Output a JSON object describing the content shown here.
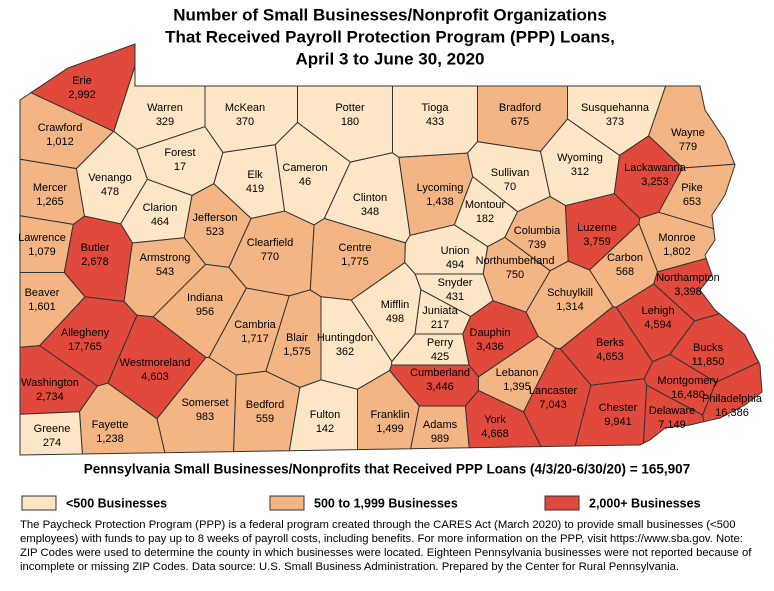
{
  "title": [
    "Number of Small Businesses/Nonprofit Organizations",
    "That Received Payroll Protection Program (PPP) Loans,",
    "April 3 to June 30, 2020"
  ],
  "total": "Pennsylvania Small Businesses/Nonprofits that Received PPP Loans (4/3/20-6/30/20) = 165,907",
  "legend": [
    {
      "label": "<500 Businesses",
      "color": "#fde6c6"
    },
    {
      "label": "500 to 1,999 Businesses",
      "color": "#f4b584"
    },
    {
      "label": "2,000+ Businesses",
      "color": "#e0493b"
    }
  ],
  "note": "The Paycheck Protection Program (PPP) is a federal program created through the CARES Act (March 2020) to provide small businesses (<500 employees) with funds to pay up to 8 weeks of payroll costs, including benefits. For more information on the PPP, visit https://www.sba.gov. Note: ZIP Codes were used to determine the county in which businesses were located. Eighteen Pennsylvania businesses were not reported because of incomplete or missing ZIP Codes. Data source: U.S. Small Business Administration. Prepared by the Center for Rural Pennsylvania.",
  "counties": [
    {
      "name": "Erie",
      "value": "2,992",
      "color": "#e0493b"
    },
    {
      "name": "Crawford",
      "value": "1,012",
      "color": "#f4b584"
    },
    {
      "name": "Warren",
      "value": "329",
      "color": "#fde6c6"
    },
    {
      "name": "McKean",
      "value": "370",
      "color": "#fde6c6"
    },
    {
      "name": "Potter",
      "value": "180",
      "color": "#fde6c6"
    },
    {
      "name": "Tioga",
      "value": "433",
      "color": "#fde6c6"
    },
    {
      "name": "Bradford",
      "value": "675",
      "color": "#f4b584"
    },
    {
      "name": "Susquehanna",
      "value": "373",
      "color": "#fde6c6"
    },
    {
      "name": "Wayne",
      "value": "779",
      "color": "#f4b584"
    },
    {
      "name": "Forest",
      "value": "17",
      "color": "#fde6c6"
    },
    {
      "name": "Venango",
      "value": "478",
      "color": "#fde6c6"
    },
    {
      "name": "Mercer",
      "value": "1,265",
      "color": "#f4b584"
    },
    {
      "name": "Elk",
      "value": "419",
      "color": "#fde6c6"
    },
    {
      "name": "Cameron",
      "value": "46",
      "color": "#fde6c6"
    },
    {
      "name": "Clinton",
      "value": "348",
      "color": "#fde6c6"
    },
    {
      "name": "Lycoming",
      "value": "1,438",
      "color": "#f4b584"
    },
    {
      "name": "Sullivan",
      "value": "70",
      "color": "#fde6c6"
    },
    {
      "name": "Wyoming",
      "value": "312",
      "color": "#fde6c6"
    },
    {
      "name": "Lackawanna",
      "value": "3,253",
      "color": "#e0493b"
    },
    {
      "name": "Pike",
      "value": "653",
      "color": "#f4b584"
    },
    {
      "name": "Lawrence",
      "value": "1,079",
      "color": "#f4b584"
    },
    {
      "name": "Clarion",
      "value": "464",
      "color": "#fde6c6"
    },
    {
      "name": "Jefferson",
      "value": "523",
      "color": "#f4b584"
    },
    {
      "name": "Clearfield",
      "value": "770",
      "color": "#f4b584"
    },
    {
      "name": "Centre",
      "value": "1,775",
      "color": "#f4b584"
    },
    {
      "name": "Union",
      "value": "494",
      "color": "#fde6c6"
    },
    {
      "name": "Montour",
      "value": "182",
      "color": "#fde6c6"
    },
    {
      "name": "Columbia",
      "value": "739",
      "color": "#f4b584"
    },
    {
      "name": "Luzerne",
      "value": "3,759",
      "color": "#e0493b"
    },
    {
      "name": "Monroe",
      "value": "1,802",
      "color": "#f4b584"
    },
    {
      "name": "Butler",
      "value": "2,678",
      "color": "#e0493b"
    },
    {
      "name": "Armstrong",
      "value": "543",
      "color": "#f4b584"
    },
    {
      "name": "Northumberland",
      "value": "750",
      "color": "#f4b584"
    },
    {
      "name": "Snyder",
      "value": "431",
      "color": "#fde6c6"
    },
    {
      "name": "Carbon",
      "value": "568",
      "color": "#f4b584"
    },
    {
      "name": "Northampton",
      "value": "3,398",
      "color": "#e0493b"
    },
    {
      "name": "Beaver",
      "value": "1,601",
      "color": "#f4b584"
    },
    {
      "name": "Indiana",
      "value": "956",
      "color": "#f4b584"
    },
    {
      "name": "Mifflin",
      "value": "498",
      "color": "#fde6c6"
    },
    {
      "name": "Juniata",
      "value": "217",
      "color": "#fde6c6"
    },
    {
      "name": "Schuylkill",
      "value": "1,314",
      "color": "#f4b584"
    },
    {
      "name": "Lehigh",
      "value": "4,594",
      "color": "#e0493b"
    },
    {
      "name": "Allegheny",
      "value": "17,765",
      "color": "#e0493b"
    },
    {
      "name": "Cambria",
      "value": "1,717",
      "color": "#f4b584"
    },
    {
      "name": "Blair",
      "value": "1,575",
      "color": "#f4b584"
    },
    {
      "name": "Huntingdon",
      "value": "362",
      "color": "#fde6c6"
    },
    {
      "name": "Perry",
      "value": "425",
      "color": "#fde6c6"
    },
    {
      "name": "Dauphin",
      "value": "3,436",
      "color": "#e0493b"
    },
    {
      "name": "Lebanon",
      "value": "1,395",
      "color": "#f4b584"
    },
    {
      "name": "Berks",
      "value": "4,653",
      "color": "#e0493b"
    },
    {
      "name": "Bucks",
      "value": "11,850",
      "color": "#e0493b"
    },
    {
      "name": "Westmoreland",
      "value": "4,603",
      "color": "#e0493b"
    },
    {
      "name": "Cumberland",
      "value": "3,446",
      "color": "#e0493b"
    },
    {
      "name": "Montgomery",
      "value": "16,480",
      "color": "#e0493b"
    },
    {
      "name": "Washington",
      "value": "2,734",
      "color": "#e0493b"
    },
    {
      "name": "Somerset",
      "value": "983",
      "color": "#f4b584"
    },
    {
      "name": "Bedford",
      "value": "559",
      "color": "#f4b584"
    },
    {
      "name": "Fulton",
      "value": "142",
      "color": "#fde6c6"
    },
    {
      "name": "Franklin",
      "value": "1,499",
      "color": "#f4b584"
    },
    {
      "name": "Adams",
      "value": "989",
      "color": "#f4b584"
    },
    {
      "name": "York",
      "value": "4,668",
      "color": "#e0493b"
    },
    {
      "name": "Lancaster",
      "value": "7,043",
      "color": "#e0493b"
    },
    {
      "name": "Chester",
      "value": "9,941",
      "color": "#e0493b"
    },
    {
      "name": "Delaware",
      "value": "7,149",
      "color": "#e0493b"
    },
    {
      "name": "Philadelphia",
      "value": "16,386",
      "color": "#e0493b"
    },
    {
      "name": "Fayette",
      "value": "1,238",
      "color": "#f4b584"
    },
    {
      "name": "Greene",
      "value": "274",
      "color": "#fde6c6"
    }
  ]
}
